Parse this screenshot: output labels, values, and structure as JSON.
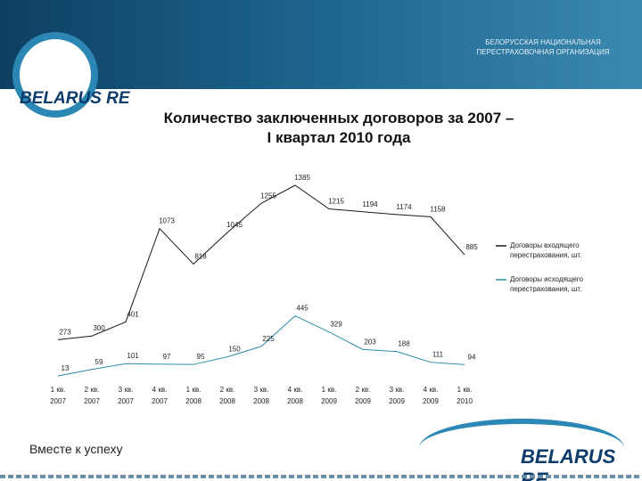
{
  "header": {
    "organization": "БЕЛОРУССКАЯ НАЦИОНАЛЬНАЯ ПЕРЕСТРАХОВОЧНАЯ ОРГАНИЗАЦИЯ",
    "logo": "BELARUS RE"
  },
  "footer": {
    "slogan": "Вместе к успеху",
    "logo": "BELARUS RE"
  },
  "chart_data": {
    "type": "line",
    "title": "Количество заключенных договоров за 2007 – I квартал 2010 года",
    "categories": [
      [
        "1 кв.",
        "2007"
      ],
      [
        "2 кв.",
        "2007"
      ],
      [
        "3 кв.",
        "2007"
      ],
      [
        "4 кв.",
        "2007"
      ],
      [
        "1 кв.",
        "2008"
      ],
      [
        "2 кв.",
        "2008"
      ],
      [
        "3 кв.",
        "2008"
      ],
      [
        "4 кв.",
        "2008"
      ],
      [
        "1 кв.",
        "2009"
      ],
      [
        "2 кв.",
        "2009"
      ],
      [
        "3 кв.",
        "2009"
      ],
      [
        "4 кв.",
        "2009"
      ],
      [
        "1 кв.",
        "2010"
      ]
    ],
    "series": [
      {
        "name": "Договоры входящего перестрахования, шт.",
        "color": "#1a1a1a",
        "values": [
          273,
          300,
          401,
          1073,
          818,
          1045,
          1255,
          1385,
          1215,
          1194,
          1174,
          1158,
          885
        ]
      },
      {
        "name": "Договоры исходящего перестрахования, шт.",
        "color": "#2a8ca6",
        "values": [
          13,
          59,
          101,
          97,
          95,
          150,
          225,
          445,
          329,
          203,
          188,
          111,
          94
        ]
      }
    ],
    "legend": "right"
  }
}
